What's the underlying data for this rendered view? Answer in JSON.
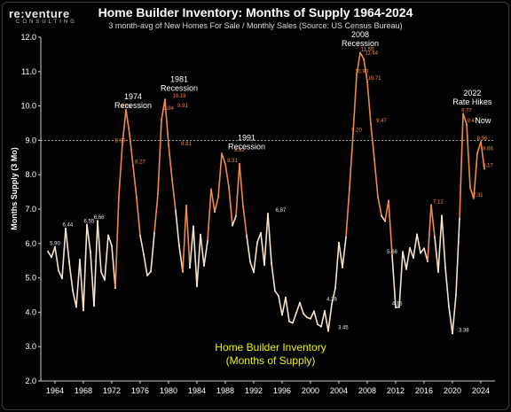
{
  "brand": {
    "name": "re:venture",
    "tagline": "CONSULTING"
  },
  "chart_data": {
    "type": "line",
    "title": "Home Builder Inventory: Months of Supply 1964-2024",
    "subtitle": "3 month-avg of New Homes For Sale / Monthly Sales (Source: US Census Bureau)",
    "ylabel": "Months Supply (3 Mo)",
    "xlabel": "",
    "inset_label": [
      "Home Builder Inventory",
      "(Months of Supply)"
    ],
    "ylim": [
      2.0,
      12.0
    ],
    "xlim": [
      1962,
      2026
    ],
    "yticks": [
      2.0,
      3.0,
      4.0,
      5.0,
      6.0,
      7.0,
      8.0,
      9.0,
      10.0,
      11.0,
      12.0
    ],
    "xticks": [
      1964,
      1968,
      1972,
      1976,
      1980,
      1984,
      1988,
      1992,
      1996,
      2000,
      2004,
      2008,
      2012,
      2016,
      2020,
      2024
    ],
    "reference_line": {
      "y": 9.0,
      "style": "dashed"
    },
    "grid": false,
    "colors": {
      "normal": "#f3e3cf",
      "high": "#f08a4b",
      "reference": "#ffffff"
    },
    "annotations": [
      {
        "text": "1974\nRecession",
        "x": 1975.0,
        "y": 10.2
      },
      {
        "text": "1981\nRecession",
        "x": 1981.5,
        "y": 10.7
      },
      {
        "text": "1991\nRecession",
        "x": 1991.0,
        "y": 9.0
      },
      {
        "text": "2008\nRecession",
        "x": 2007.0,
        "y": 12.0
      },
      {
        "text": "2022\nRate Hikes",
        "x": 2022.8,
        "y": 10.3
      },
      {
        "text": "Now",
        "x": 2024.3,
        "y": 9.5
      }
    ],
    "series": [
      {
        "x": [
          1963.0,
          1963.5,
          1964.0,
          1964.5,
          1965.0,
          1965.5,
          1966.0,
          1966.5,
          1967.0,
          1967.5,
          1968.0,
          1968.5,
          1969.0,
          1969.5,
          1970.0,
          1970.5,
          1971.0,
          1971.5,
          1972.0,
          1972.5,
          1973.0,
          1973.5,
          1974.0,
          1974.5,
          1975.0,
          1975.5,
          1976.0,
          1976.5,
          1977.0,
          1977.5,
          1978.0,
          1978.5,
          1979.0,
          1979.5,
          1980.0,
          1980.5,
          1981.0,
          1981.5,
          1982.0,
          1982.5,
          1983.0,
          1983.5,
          1984.0,
          1984.5,
          1985.0,
          1985.5,
          1986.0,
          1986.5,
          1987.0,
          1987.5,
          1988.0,
          1988.5,
          1989.0,
          1989.5,
          1990.0,
          1990.5,
          1991.0,
          1991.5,
          1992.0,
          1992.5,
          1993.0,
          1993.5,
          1994.0,
          1994.5,
          1995.0,
          1995.5,
          1996.0,
          1996.5,
          1997.0,
          1997.5,
          1998.0,
          1998.5,
          1999.0,
          1999.5,
          2000.0,
          2000.5,
          2001.0,
          2001.5,
          2002.0,
          2002.5,
          2003.0,
          2003.5,
          2004.0,
          2004.5,
          2005.0,
          2005.5,
          2006.0,
          2006.5,
          2007.0,
          2007.5,
          2008.0,
          2008.5,
          2009.0,
          2009.5,
          2010.0,
          2010.5,
          2011.0,
          2011.5,
          2012.0,
          2012.5,
          2013.0,
          2013.5,
          2014.0,
          2014.5,
          2015.0,
          2015.5,
          2016.0,
          2016.5,
          2017.0,
          2017.5,
          2018.0,
          2018.5,
          2019.0,
          2019.5,
          2020.0,
          2020.5,
          2021.0,
          2021.5,
          2022.0,
          2022.5,
          2023.0,
          2023.5,
          2024.0,
          2024.5
        ],
        "y": [
          5.77,
          5.6,
          5.9,
          5.21,
          4.98,
          6.44,
          5.46,
          4.63,
          4.15,
          5.53,
          4.05,
          6.55,
          5.74,
          4.18,
          6.66,
          5.17,
          4.94,
          6.24,
          5.93,
          4.7,
          7.39,
          8.9,
          9.89,
          9.18,
          8.26,
          7.32,
          6.23,
          5.68,
          5.07,
          5.18,
          6.31,
          7.44,
          9.6,
          10.19,
          8.87,
          7.86,
          6.95,
          5.92,
          5.18,
          7.11,
          5.29,
          6.5,
          4.75,
          6.26,
          5.35,
          6.07,
          7.58,
          6.92,
          7.35,
          8.62,
          8.31,
          7.64,
          6.52,
          6.8,
          8.32,
          7.09,
          6.23,
          5.47,
          5.16,
          6.03,
          6.31,
          5.37,
          6.87,
          5.43,
          4.62,
          4.47,
          3.92,
          4.43,
          3.73,
          3.69,
          3.98,
          4.28,
          3.96,
          3.85,
          3.81,
          4.03,
          3.65,
          3.58,
          4.04,
          3.45,
          4.24,
          4.7,
          6.03,
          5.3,
          6.18,
          7.62,
          9.2,
          10.9,
          11.55,
          11.37,
          10.71,
          9.47,
          8.45,
          7.35,
          6.81,
          6.65,
          7.25,
          5.66,
          4.14,
          4.15,
          5.76,
          5.25,
          5.87,
          5.58,
          6.27,
          5.72,
          5.86,
          5.48,
          7.12,
          6.19,
          5.17,
          6.81,
          5.3,
          4.16,
          3.38,
          4.51,
          6.72,
          9.77,
          9.47,
          7.62,
          7.31,
          8.62,
          8.96,
          8.17
        ]
      }
    ],
    "data_labels": [
      {
        "x": 1964.0,
        "y": 5.9,
        "t": "5.90"
      },
      {
        "x": 1965.8,
        "y": 6.44,
        "t": "6.44"
      },
      {
        "x": 1968.8,
        "y": 6.55,
        "t": "6.55"
      },
      {
        "x": 1970.2,
        "y": 6.66,
        "t": "6.66"
      },
      {
        "x": 1973.2,
        "y": 8.9,
        "t": "8.90"
      },
      {
        "x": 1974.0,
        "y": 9.89,
        "t": "9.89"
      },
      {
        "x": 1976.0,
        "y": 8.27,
        "t": "8.27"
      },
      {
        "x": 1980.0,
        "y": 9.84,
        "t": "9.84"
      },
      {
        "x": 1981.5,
        "y": 10.19,
        "t": "10.19"
      },
      {
        "x": 1982.0,
        "y": 9.91,
        "t": "9.91"
      },
      {
        "x": 1982.5,
        "y": 8.81,
        "t": "8.81"
      },
      {
        "x": 1990.0,
        "y": 8.62,
        "t": "8.62"
      },
      {
        "x": 1989.0,
        "y": 8.31,
        "t": "8.31"
      },
      {
        "x": 1995.8,
        "y": 6.87,
        "t": "6.87"
      },
      {
        "x": 2003.0,
        "y": 4.28,
        "t": "4.28"
      },
      {
        "x": 2004.6,
        "y": 3.45,
        "t": "3.45"
      },
      {
        "x": 2006.5,
        "y": 9.2,
        "t": "9.20"
      },
      {
        "x": 2007.2,
        "y": 10.9,
        "t": "10.90"
      },
      {
        "x": 2008.0,
        "y": 11.55,
        "t": "11.55"
      },
      {
        "x": 2008.6,
        "y": 11.44,
        "t": "11.44"
      },
      {
        "x": 2009.0,
        "y": 10.71,
        "t": "10.71"
      },
      {
        "x": 2010.0,
        "y": 9.47,
        "t": "9.47"
      },
      {
        "x": 2011.5,
        "y": 5.66,
        "t": "5.66"
      },
      {
        "x": 2012.2,
        "y": 4.15,
        "t": "4.15"
      },
      {
        "x": 2018.0,
        "y": 7.12,
        "t": "7.12"
      },
      {
        "x": 2022.0,
        "y": 9.77,
        "t": "9.77"
      },
      {
        "x": 2022.8,
        "y": 9.47,
        "t": "9.47"
      },
      {
        "x": 2021.6,
        "y": 3.38,
        "t": "3.38"
      },
      {
        "x": 2024.2,
        "y": 8.96,
        "t": "8.96"
      },
      {
        "x": 2025.0,
        "y": 8.66,
        "t": "8.66"
      },
      {
        "x": 2025.0,
        "y": 8.17,
        "t": "8.17"
      },
      {
        "x": 2023.6,
        "y": 7.31,
        "t": "7.31"
      }
    ]
  }
}
